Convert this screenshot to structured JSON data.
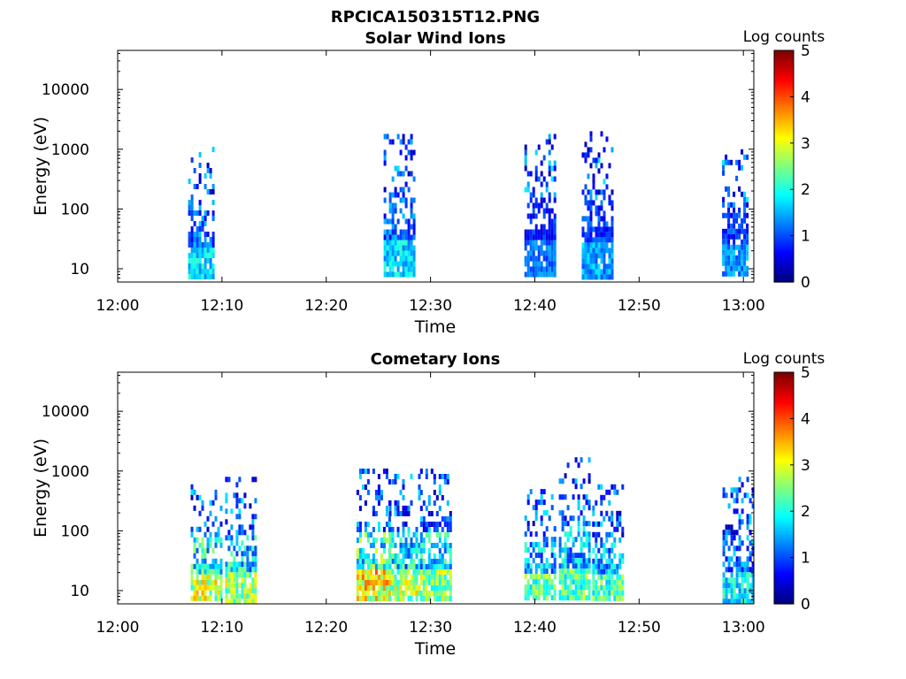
{
  "figure": {
    "title": "RPCICA150315T12.PNG"
  },
  "colorbar": {
    "label": "Log counts",
    "ticks": [
      "0",
      "1",
      "2",
      "3",
      "4",
      "5"
    ],
    "range": [
      0,
      5
    ],
    "colormap": "jet"
  },
  "chart_data": [
    {
      "type": "heatmap",
      "title": "Solar Wind Ions",
      "xlabel": "Time",
      "ylabel": "Energy (eV)",
      "x_ticks": [
        "12:00",
        "12:10",
        "12:20",
        "12:30",
        "12:40",
        "12:50",
        "13:00"
      ],
      "x_range_minutes": [
        0,
        61
      ],
      "y_scale": "log",
      "y_ticks": [
        "10",
        "100",
        "1000",
        "10000"
      ],
      "y_range_eV": [
        6,
        45000
      ],
      "z_label": "Log counts",
      "z_range": [
        0,
        5
      ],
      "clusters": [
        {
          "t": 8.0,
          "width": 2.5,
          "e_low": 8,
          "e_high": 1100,
          "peak_log_counts": 2.2
        },
        {
          "t": 27.0,
          "width": 3.0,
          "e_low": 8,
          "e_high": 1800,
          "peak_log_counts": 2.2
        },
        {
          "t": 40.5,
          "width": 3.0,
          "e_low": 8,
          "e_high": 1800,
          "peak_log_counts": 1.5
        },
        {
          "t": 46.0,
          "width": 3.0,
          "e_low": 8,
          "e_high": 2000,
          "peak_log_counts": 1.8
        },
        {
          "t": 59.2,
          "width": 2.5,
          "e_low": 8,
          "e_high": 1000,
          "peak_log_counts": 1.7
        }
      ]
    },
    {
      "type": "heatmap",
      "title": "Cometary Ions",
      "xlabel": "Time",
      "ylabel": "Energy (eV)",
      "x_ticks": [
        "12:00",
        "12:10",
        "12:20",
        "12:30",
        "12:40",
        "12:50",
        "13:00"
      ],
      "x_range_minutes": [
        0,
        61
      ],
      "y_scale": "log",
      "y_ticks": [
        "10",
        "100",
        "1000",
        "10000"
      ],
      "y_range_eV": [
        6,
        45000
      ],
      "z_label": "Log counts",
      "z_range": [
        0,
        5
      ],
      "clusters": [
        {
          "t": 8.5,
          "width": 3.0,
          "e_low": 7,
          "e_high": 600,
          "peak_log_counts": 3.6
        },
        {
          "t": 11.8,
          "width": 3.0,
          "e_low": 7,
          "e_high": 800,
          "peak_log_counts": 3.4
        },
        {
          "t": 24.5,
          "width": 3.2,
          "e_low": 7,
          "e_high": 1100,
          "peak_log_counts": 4.0
        },
        {
          "t": 27.5,
          "width": 3.0,
          "e_low": 7,
          "e_high": 900,
          "peak_log_counts": 3.5
        },
        {
          "t": 30.5,
          "width": 3.0,
          "e_low": 7,
          "e_high": 1100,
          "peak_log_counts": 3.3
        },
        {
          "t": 40.5,
          "width": 3.0,
          "e_low": 7,
          "e_high": 500,
          "peak_log_counts": 3.0
        },
        {
          "t": 43.8,
          "width": 3.0,
          "e_low": 7,
          "e_high": 1700,
          "peak_log_counts": 3.0
        },
        {
          "t": 47.0,
          "width": 3.0,
          "e_low": 7,
          "e_high": 600,
          "peak_log_counts": 2.9
        },
        {
          "t": 59.5,
          "width": 3.0,
          "e_low": 7,
          "e_high": 800,
          "peak_log_counts": 2.3
        }
      ]
    }
  ]
}
